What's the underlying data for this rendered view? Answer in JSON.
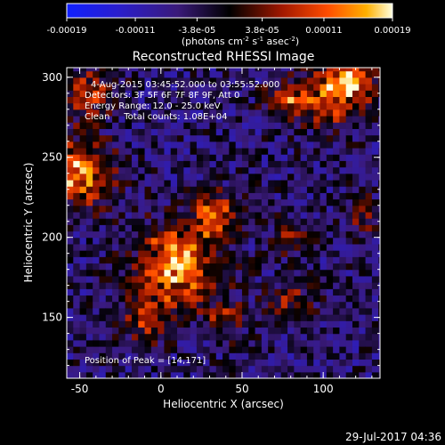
{
  "chart_data": {
    "type": "heatmap",
    "title": "Reconstructed RHESSI Image",
    "xlabel": "Heliocentric X (arcsec)",
    "ylabel": "Heliocentric Y (arcsec)",
    "xlim": [
      -58,
      135
    ],
    "ylim": [
      112,
      306
    ],
    "x_ticks": [
      -50,
      0,
      50,
      100
    ],
    "y_ticks": [
      150,
      200,
      250,
      300
    ],
    "colorbar": {
      "ticks": [
        -0.00019,
        -0.00011,
        -3.8e-05,
        3.8e-05,
        0.00011,
        0.00019
      ],
      "tick_labels": [
        "-0.00019",
        "-0.00011",
        "-3.8e-05",
        "3.8e-05",
        "0.00011",
        "0.00019"
      ],
      "unit_base": "(photons cm",
      "unit_mid": " s",
      "unit_end": " asec",
      "unit_close": ")",
      "sup1": "-2",
      "sup2": "-1",
      "sup3": "-2",
      "range": [
        -0.00019,
        0.00019
      ]
    },
    "info_lines": [
      "4-Aug-2015 03:45:52.000 to 03:55:52.000",
      "Detectors: 3F 5F 6F 7F 8F 9F, Att 0",
      "Energy Range: 12.0 - 25.0 keV",
      "Clean     Total counts: 1.08E+04"
    ],
    "peak_label": "Position of Peak = [14,171]",
    "sources": [
      {
        "x": 10,
        "y": 183,
        "sigma": 17,
        "amp": 0.00019
      },
      {
        "x": 33,
        "y": 215,
        "sigma": 9,
        "amp": 0.00017
      },
      {
        "x": -50,
        "y": 240,
        "sigma": 14,
        "amp": 0.00018
      },
      {
        "x": -43,
        "y": 290,
        "sigma": 11,
        "amp": 0.00012
      },
      {
        "x": 105,
        "y": 290,
        "sigma": 14,
        "amp": 0.00014
      },
      {
        "x": 118,
        "y": 300,
        "sigma": 10,
        "amp": 0.00013
      },
      {
        "x": 78,
        "y": 285,
        "sigma": 9,
        "amp": 0.00011
      },
      {
        "x": 80,
        "y": 200,
        "sigma": 8,
        "amp": 9e-05
      },
      {
        "x": 80,
        "y": 160,
        "sigma": 9,
        "amp": 9e-05
      },
      {
        "x": 125,
        "y": 215,
        "sigma": 8,
        "amp": 8e-05
      },
      {
        "x": -10,
        "y": 150,
        "sigma": 10,
        "amp": 0.0001
      },
      {
        "x": 40,
        "y": 150,
        "sigma": 9,
        "amp": 9e-05
      }
    ],
    "background_level": -5e-05,
    "noise_amplitude": 6e-05,
    "pixel_size_arcsec": 4,
    "timestamp": "29-Jul-2017 04:36"
  }
}
